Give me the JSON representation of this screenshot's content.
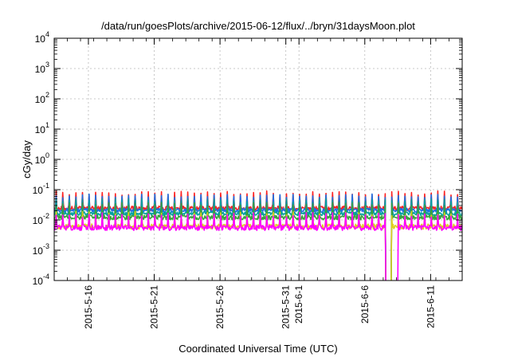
{
  "chart_data": {
    "type": "line",
    "title": "/data/run/goesPlots/archive/2015-06-12/flux/../bryn/31daysMoon.plot",
    "xlabel": "Coordinated Universal Time (UTC)",
    "ylabel": "cGy/day",
    "y_scale": "log",
    "ylim": [
      0.0001,
      10000
    ],
    "xlim_days": [
      0,
      31
    ],
    "grid": true,
    "y_ticks": [
      {
        "base": "10",
        "exp": "4",
        "value": 10000
      },
      {
        "base": "10",
        "exp": "3",
        "value": 1000
      },
      {
        "base": "10",
        "exp": "2",
        "value": 100
      },
      {
        "base": "10",
        "exp": "1",
        "value": 10
      },
      {
        "base": "10",
        "exp": "0",
        "value": 1
      },
      {
        "base": "10",
        "exp": "-1",
        "value": 0.1
      },
      {
        "base": "10",
        "exp": "-2",
        "value": 0.01
      },
      {
        "base": "10",
        "exp": "-3",
        "value": 0.001
      },
      {
        "base": "10",
        "exp": "-4",
        "value": 0.0001
      }
    ],
    "x_ticks": [
      {
        "label": "2015-5-16",
        "day": 2.6
      },
      {
        "label": "2015-5-21",
        "day": 7.6
      },
      {
        "label": "2015-5-26",
        "day": 12.6
      },
      {
        "label": "2015-5-31",
        "day": 17.6
      },
      {
        "label": "2015-6-1",
        "day": 18.6
      },
      {
        "label": "2015-6-6",
        "day": 23.6
      },
      {
        "label": "2015-6-11",
        "day": 28.6
      }
    ],
    "series": [
      {
        "color": "#ff2020",
        "base": 0.024,
        "amp": 2.2,
        "noise": 0.35,
        "dropout": [
          25.2,
          25.6
        ]
      },
      {
        "color": "#1f6fe0",
        "base": 0.021,
        "amp": 2.0,
        "noise": 0.3,
        "dropout": [
          25.2,
          25.6
        ]
      },
      {
        "color": "#00a0a0",
        "base": 0.016,
        "amp": 1.7,
        "noise": 0.3,
        "dropout": [
          25.2,
          25.6
        ]
      },
      {
        "color": "#3aa040",
        "base": 0.012,
        "amp": 1.6,
        "noise": 0.35,
        "dropout": [
          25.2,
          25.6
        ]
      },
      {
        "color": "#e0d020",
        "base": 0.006,
        "amp": 1.6,
        "noise": 0.4,
        "dropout": [
          25.2,
          25.6
        ]
      },
      {
        "color": "#ff00ff",
        "base": 0.0055,
        "amp": 1.7,
        "noise": 0.4,
        "dropout": [
          25.2,
          26.1
        ]
      }
    ]
  }
}
